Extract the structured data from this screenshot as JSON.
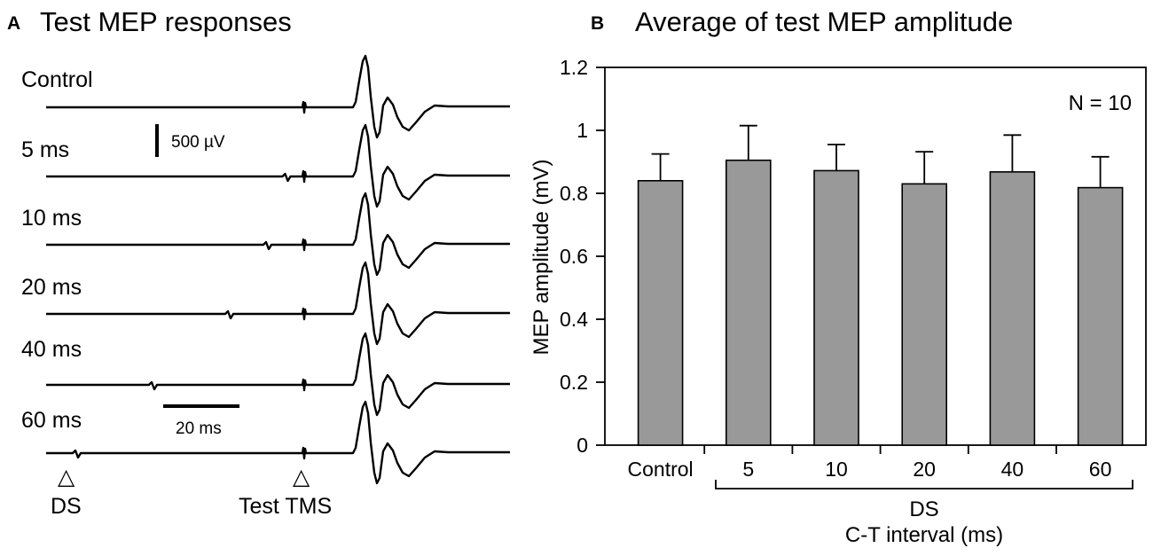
{
  "panel_a": {
    "letter": "A",
    "title": "Test MEP responses",
    "traces": [
      {
        "label": "Control",
        "ds_time_ms": null
      },
      {
        "label": "5 ms",
        "ds_time_ms": 5
      },
      {
        "label": "10 ms",
        "ds_time_ms": 10
      },
      {
        "label": "20 ms",
        "ds_time_ms": 20
      },
      {
        "label": "40 ms",
        "ds_time_ms": 40
      },
      {
        "label": "60 ms",
        "ds_time_ms": 60
      }
    ],
    "amplitude_scale_label": "500 µV",
    "time_scale_label": "20 ms",
    "markers": {
      "ds_label": "DS",
      "test_label": "Test TMS",
      "symbol": "△"
    }
  },
  "panel_b": {
    "letter": "B",
    "title": "Average of test MEP amplitude",
    "annotation": "N = 10",
    "ds_group_label": "DS",
    "ticks": [
      {
        "value": 0,
        "label": "0"
      },
      {
        "value": 0.2,
        "label": "0.2"
      },
      {
        "value": 0.4,
        "label": "0.4"
      },
      {
        "value": 0.6,
        "label": "0.6"
      },
      {
        "value": 0.8,
        "label": "0.8"
      },
      {
        "value": 1.0,
        "label": "1"
      },
      {
        "value": 1.2,
        "label": "1.2"
      }
    ]
  },
  "chart_data": {
    "type": "bar",
    "title": "Average of test MEP amplitude",
    "xlabel": "C-T interval (ms)",
    "ylabel": "MEP amplitude (mV)",
    "ylim": [
      0,
      1.2
    ],
    "grid": false,
    "categories": [
      "Control",
      "5",
      "10",
      "20",
      "40",
      "60"
    ],
    "values": [
      0.84,
      0.905,
      0.872,
      0.83,
      0.868,
      0.818
    ],
    "error_upper": [
      0.085,
      0.11,
      0.083,
      0.102,
      0.117,
      0.098
    ]
  },
  "colors": {
    "bar_fill": "#999999",
    "ink": "#000000",
    "background": "#ffffff"
  }
}
